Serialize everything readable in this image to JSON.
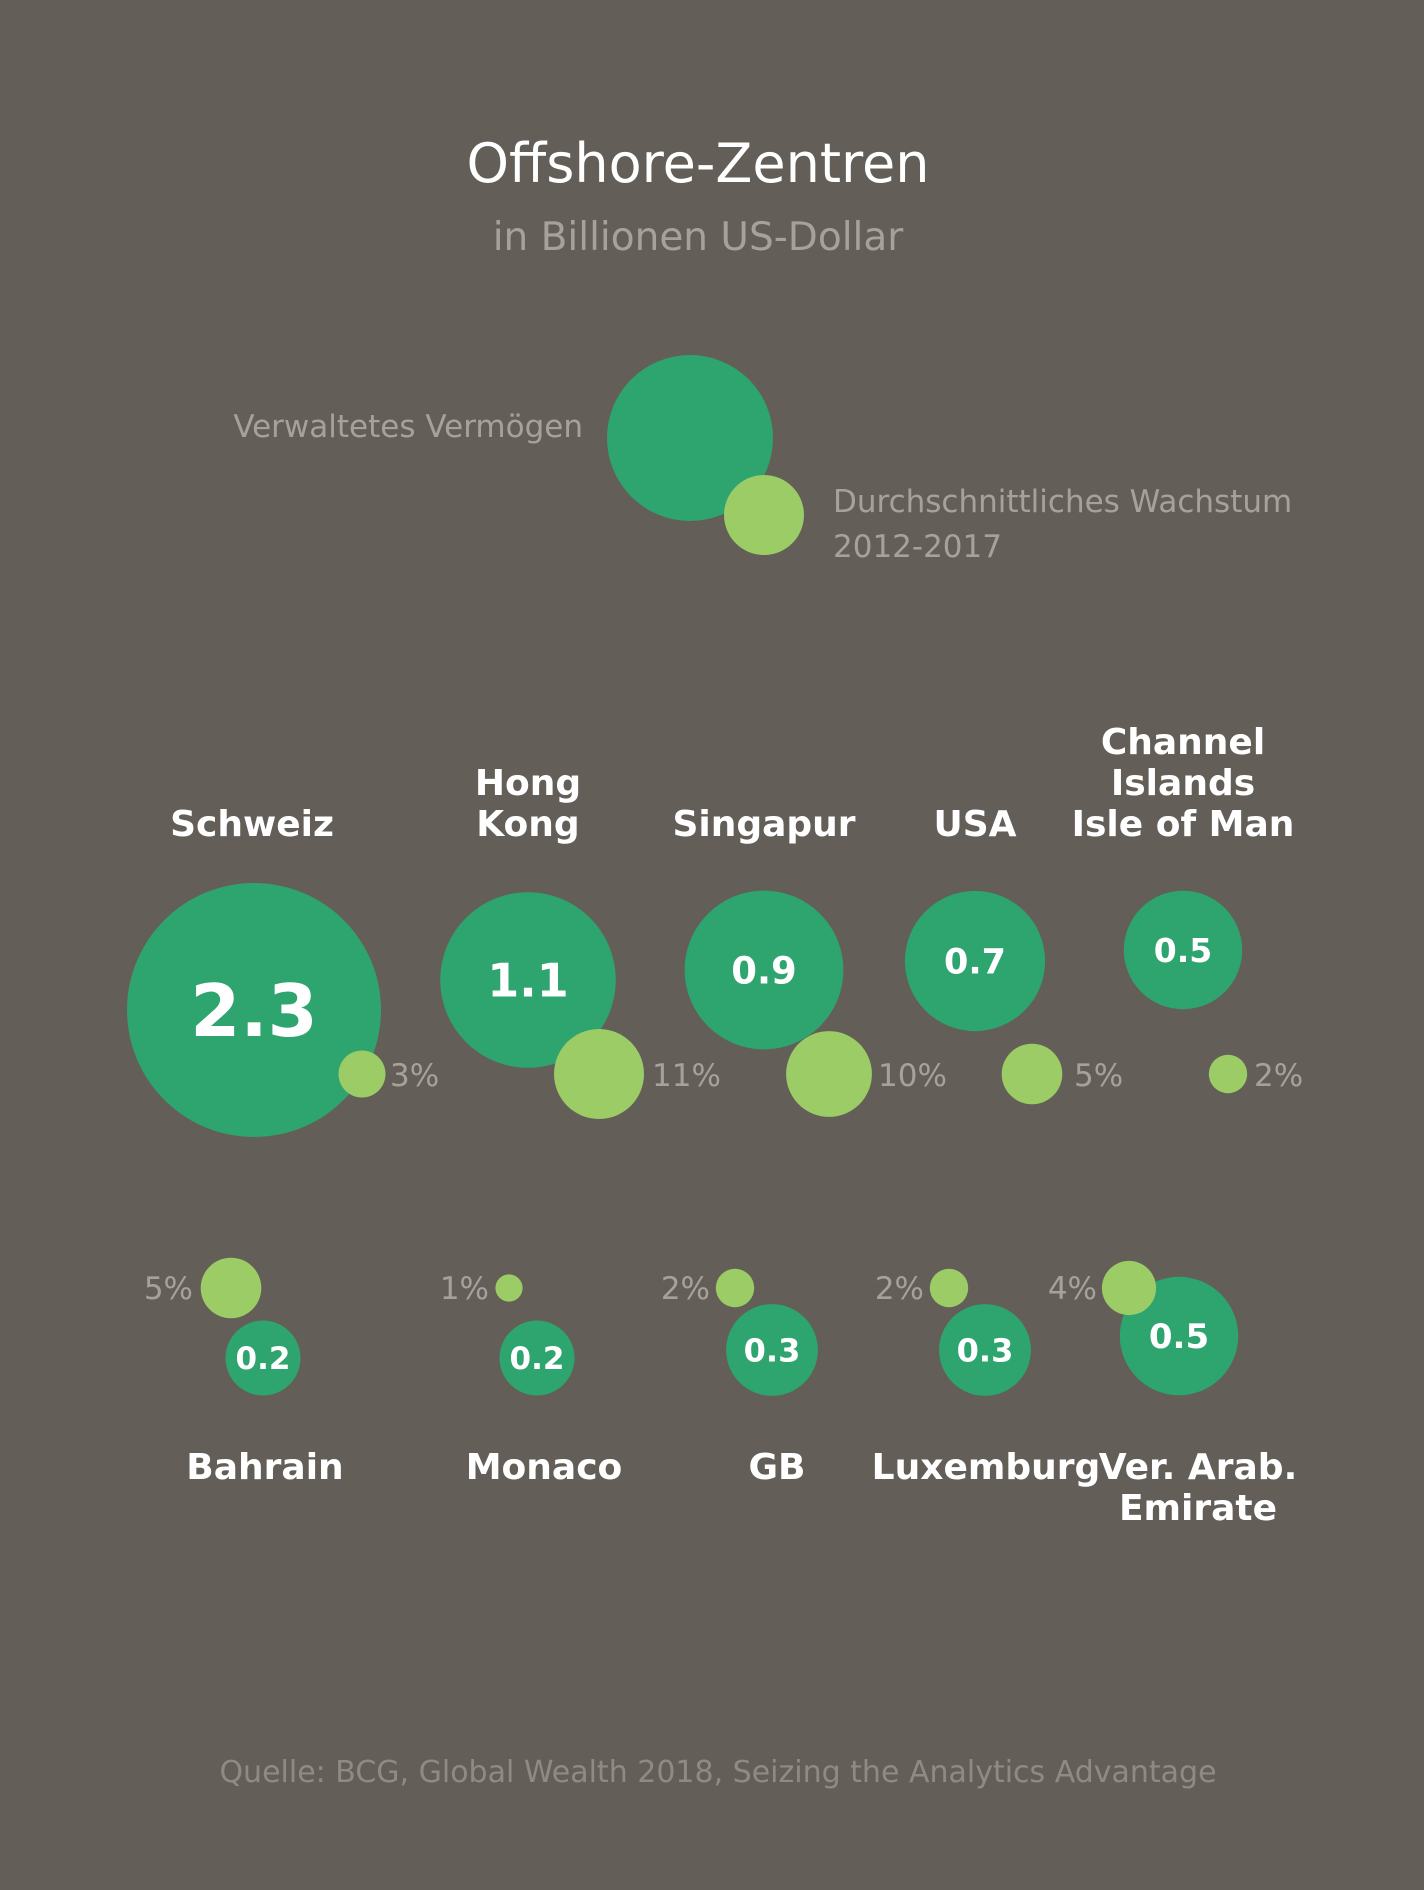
{
  "colors": {
    "background": "#635f58",
    "assets": "#2ea46f",
    "growth": "#9ccc65",
    "text_primary": "#ffffff",
    "text_secondary": "#a6a29b"
  },
  "header": {
    "title": "Offshore-Zentren",
    "subtitle": "in Billionen US-Dollar"
  },
  "legend": {
    "assets_label": "Verwaltetes Vermögen",
    "growth_label_line1": "Durchschnittliches Wachstum",
    "growth_label_line2": "2012-2017"
  },
  "chart_data": {
    "type": "bubble",
    "title": "Offshore-Zentren",
    "subtitle": "in Billionen US-Dollar",
    "series": [
      {
        "name": "Verwaltetes Vermögen",
        "unit": "Billionen US-Dollar"
      },
      {
        "name": "Durchschnittliches Wachstum 2012-2017",
        "unit": "%"
      }
    ],
    "centers": [
      {
        "name_lines": [
          "Schweiz"
        ],
        "value": 2.3,
        "value_label": "2.3",
        "growth": 3,
        "growth_label": "3%"
      },
      {
        "name_lines": [
          "Hong",
          "Kong"
        ],
        "value": 1.1,
        "value_label": "1.1",
        "growth": 11,
        "growth_label": "11%"
      },
      {
        "name_lines": [
          "Singapur"
        ],
        "value": 0.9,
        "value_label": "0.9",
        "growth": 10,
        "growth_label": "10%"
      },
      {
        "name_lines": [
          "USA"
        ],
        "value": 0.7,
        "value_label": "0.7",
        "growth": 5,
        "growth_label": "5%"
      },
      {
        "name_lines": [
          "Channel",
          "Islands",
          "Isle of Man"
        ],
        "value": 0.5,
        "value_label": "0.5",
        "growth": 2,
        "growth_label": "2%"
      },
      {
        "name_lines": [
          "Bahrain"
        ],
        "value": 0.2,
        "value_label": "0.2",
        "growth": 5,
        "growth_label": "5%"
      },
      {
        "name_lines": [
          "Monaco"
        ],
        "value": 0.2,
        "value_label": "0.2",
        "growth": 1,
        "growth_label": "1%"
      },
      {
        "name_lines": [
          "GB"
        ],
        "value": 0.3,
        "value_label": "0.3",
        "growth": 2,
        "growth_label": "2%"
      },
      {
        "name_lines": [
          "Luxemburg"
        ],
        "value": 0.3,
        "value_label": "0.3",
        "growth": 2,
        "growth_label": "2%"
      },
      {
        "name_lines": [
          "Ver. Arab.",
          "Emirate"
        ],
        "value": 0.5,
        "value_label": "0.5",
        "growth": 4,
        "growth_label": "4%"
      }
    ]
  },
  "footer": {
    "source": "Quelle: BCG, Global Wealth 2018, Seizing the Analytics Advantage"
  }
}
